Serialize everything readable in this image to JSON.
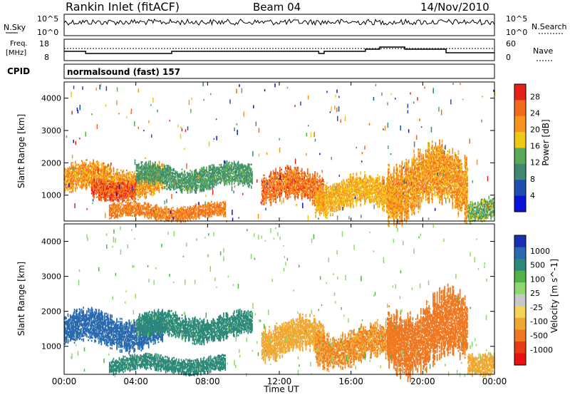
{
  "header": {
    "station": "Rankin Inlet (fitACF)",
    "beam": "Beam 04",
    "date": "14/Nov/2010"
  },
  "noise_panel": {
    "left_label": "N.Sky",
    "left_ticks": [
      "10^5",
      "10^0"
    ],
    "right_ticks": [
      "10^5",
      "10^0"
    ],
    "right_label": "N.Search"
  },
  "freq_panel": {
    "left_label_1": "Freq.",
    "left_label_2": "[MHz]",
    "left_ticks": [
      "18",
      "8"
    ],
    "right_ticks": [
      "60",
      "0"
    ],
    "right_label": "Nave"
  },
  "cpid": {
    "label": "CPID",
    "value": "normalsound (fast) 157"
  },
  "colors": {
    "power_scale": [
      "#0a14d8",
      "#1e4fb0",
      "#3d8a70",
      "#5aa85a",
      "#f0c814",
      "#f7941e",
      "#f26a1b",
      "#e8201c"
    ],
    "velocity_scale": [
      "#1a2fb5",
      "#2a6ab0",
      "#2e8a78",
      "#52b24a",
      "#8fd870",
      "#c8c8c8",
      "#f5d25a",
      "#f0a830",
      "#f07820",
      "#e83a18",
      "#e81010"
    ]
  },
  "chart_data": [
    {
      "type": "heatmap",
      "panel": "power",
      "ylabel": "Slant Range [km]",
      "xlabel": "",
      "x_ticks": [
        "00:00",
        "04:00",
        "08:00",
        "12:00",
        "16:00",
        "20:00",
        "00:00"
      ],
      "y_ticks": [
        1000,
        2000,
        3000,
        4000
      ],
      "ylim": [
        200,
        4500
      ],
      "xlim_hours": [
        0,
        24
      ],
      "colorbar": {
        "label": "Power [dB]",
        "ticks": [
          4,
          8,
          12,
          16,
          20,
          24,
          28
        ],
        "range": [
          0,
          31
        ]
      },
      "echo_bands": [
        {
          "t0": 0.0,
          "t1": 5.5,
          "r0": 1000,
          "r1": 1900,
          "level": 22
        },
        {
          "t0": 1.5,
          "t1": 4.0,
          "r0": 900,
          "r1": 1500,
          "level": 27
        },
        {
          "t0": 4.0,
          "t1": 10.5,
          "r0": 1200,
          "r1": 1900,
          "level": 12
        },
        {
          "t0": 2.5,
          "t1": 9.0,
          "r0": 250,
          "r1": 700,
          "level": 24
        },
        {
          "t0": 11.0,
          "t1": 14.5,
          "r0": 700,
          "r1": 1700,
          "level": 25
        },
        {
          "t0": 14.0,
          "t1": 18.5,
          "r0": 500,
          "r1": 1500,
          "level": 20
        },
        {
          "t0": 18.0,
          "t1": 22.5,
          "r0": 400,
          "r1": 2300,
          "level": 22
        },
        {
          "t0": 22.5,
          "t1": 24.0,
          "r0": 250,
          "r1": 900,
          "level": 14
        }
      ]
    },
    {
      "type": "heatmap",
      "panel": "velocity",
      "ylabel": "Slant Range [km]",
      "xlabel": "Time UT",
      "x_ticks": [
        "00:00",
        "04:00",
        "08:00",
        "12:00",
        "16:00",
        "20:00",
        "00:00"
      ],
      "y_ticks": [
        1000,
        2000,
        3000,
        4000
      ],
      "ylim": [
        200,
        4500
      ],
      "xlim_hours": [
        0,
        24
      ],
      "colorbar": {
        "label": "Velocity [m s^-1]",
        "ticks": [
          1000,
          500,
          100,
          25,
          -25,
          -100,
          -500,
          -1000
        ]
      },
      "echo_bands": [
        {
          "t0": 0.0,
          "t1": 5.5,
          "r0": 1000,
          "r1": 1900,
          "level": 500
        },
        {
          "t0": 4.0,
          "t1": 10.5,
          "r0": 1200,
          "r1": 1900,
          "level": 100
        },
        {
          "t0": 2.5,
          "t1": 9.0,
          "r0": 250,
          "r1": 700,
          "level": 100
        },
        {
          "t0": 11.0,
          "t1": 14.5,
          "r0": 700,
          "r1": 1700,
          "level": -100
        },
        {
          "t0": 14.0,
          "t1": 18.5,
          "r0": 500,
          "r1": 1500,
          "level": -300
        },
        {
          "t0": 18.0,
          "t1": 22.5,
          "r0": 400,
          "r1": 2300,
          "level": -500
        },
        {
          "t0": 22.5,
          "t1": 24.0,
          "r0": 250,
          "r1": 900,
          "level": -200
        }
      ]
    }
  ]
}
